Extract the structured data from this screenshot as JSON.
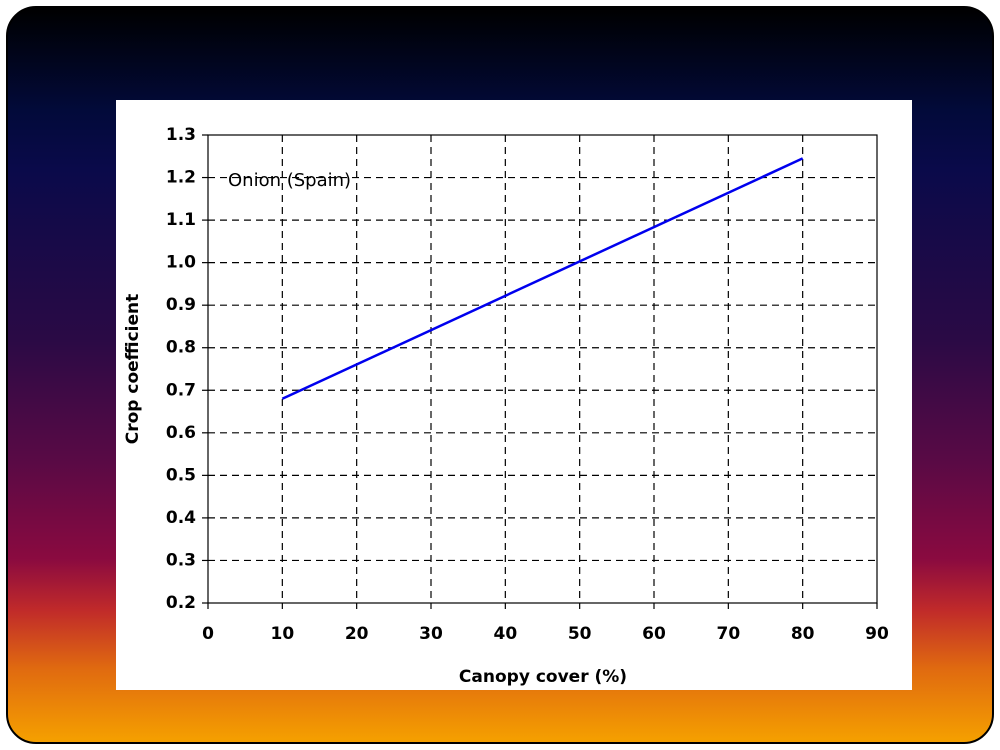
{
  "chart_data": {
    "type": "line",
    "xlabel": "Canopy cover (%)",
    "ylabel": "Crop coefficient",
    "annotation": "Onion (Spain)",
    "x": [
      10,
      80
    ],
    "series": [
      {
        "name": "Onion (Spain)",
        "color": "#0000ee",
        "values": [
          0.68,
          1.245
        ]
      }
    ],
    "xlim": [
      0,
      90
    ],
    "xticks": [
      0,
      10,
      20,
      30,
      40,
      50,
      60,
      70,
      80,
      90
    ],
    "ylim": [
      0.2,
      1.3
    ],
    "yticks": [
      0.2,
      0.3,
      0.4,
      0.5,
      0.6,
      0.7,
      0.8,
      0.9,
      {
        "value": 1,
        "label": "1.0"
      },
      1.1,
      1.2,
      1.3
    ],
    "grid": true
  }
}
